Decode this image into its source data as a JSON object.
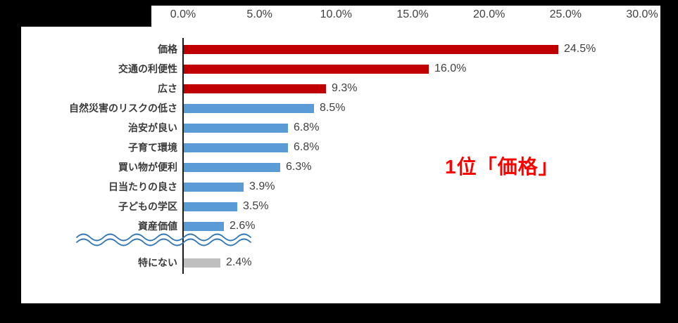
{
  "colors": {
    "red": "#C00000",
    "blue": "#5B9BD5",
    "gray": "#BFBFBF",
    "annotation": "#FF0000",
    "wave": "#2E75B6",
    "axis_text": "#404040"
  },
  "chart_data": {
    "type": "bar",
    "orientation": "horizontal",
    "title": "",
    "legend": "none",
    "grid": "off",
    "x_axis": {
      "position": "top",
      "min": 0,
      "max": 30,
      "ticks": [
        "0.0%",
        "5.0%",
        "10.0%",
        "15.0%",
        "20.0%",
        "25.0%",
        "30.0%"
      ]
    },
    "categories": [
      "価格",
      "交通の利便性",
      "広さ",
      "自然災害のリスクの低さ",
      "治安が良い",
      "子育て環境",
      "買い物が便利",
      "日当たりの良さ",
      "子どもの学区",
      "資産価値",
      "特にない"
    ],
    "values": [
      24.5,
      16.0,
      9.3,
      8.5,
      6.8,
      6.8,
      6.3,
      3.9,
      3.5,
      2.6,
      2.4
    ],
    "value_labels": [
      "24.5%",
      "16.0%",
      "9.3%",
      "8.5%",
      "6.8%",
      "6.8%",
      "6.3%",
      "3.9%",
      "3.5%",
      "2.6%",
      "2.4%"
    ],
    "bar_colors": [
      "red",
      "red",
      "red",
      "blue",
      "blue",
      "blue",
      "blue",
      "blue",
      "blue",
      "blue",
      "gray"
    ],
    "axis_break_after_index": 9,
    "annotation": "1位「価格」"
  }
}
